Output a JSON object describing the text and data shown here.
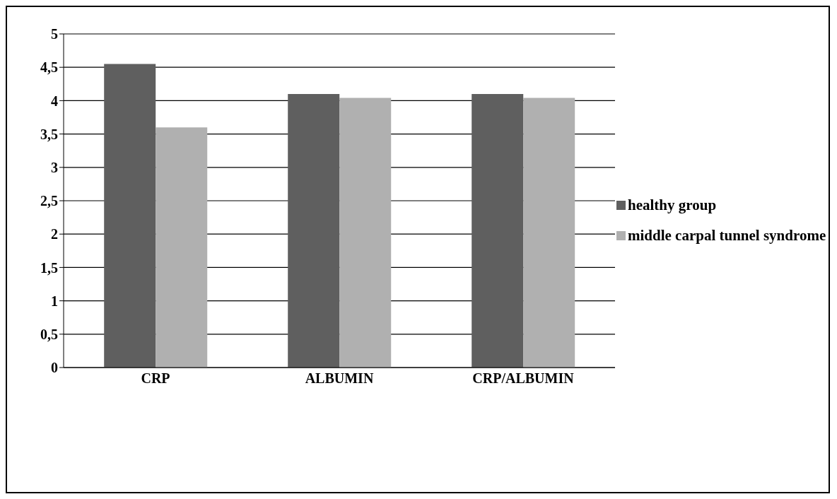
{
  "chart_data": {
    "type": "bar",
    "categories": [
      "CRP",
      "ALBUMIN",
      "CRP/ALBUMIN"
    ],
    "series": [
      {
        "name": "healthy group",
        "color": "#5f5f5f",
        "values": [
          4.55,
          4.1,
          4.1
        ]
      },
      {
        "name": "middle carpal tunnel syndrome",
        "color": "#b0b0b0",
        "values": [
          3.6,
          4.04,
          4.04
        ]
      }
    ],
    "ylim": [
      0,
      5
    ],
    "yticks": [
      0,
      {
        "value": 0.5,
        "label": "0,5"
      },
      1,
      {
        "value": 1.5,
        "label": "1,5"
      },
      2,
      {
        "value": 2.5,
        "label": "2,5"
      },
      3,
      {
        "value": 3.5,
        "label": "3,5"
      },
      4,
      {
        "value": 4.5,
        "label": "4,5"
      },
      5
    ],
    "grid": "y",
    "legend": "right"
  }
}
